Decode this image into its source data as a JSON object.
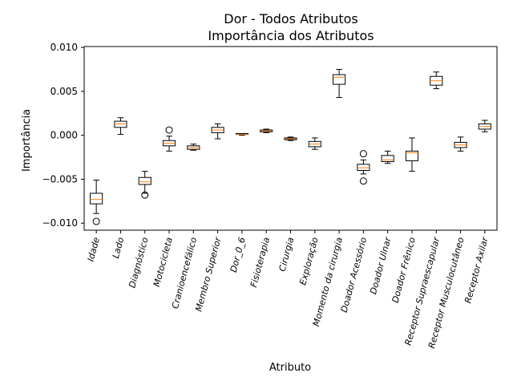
{
  "chart_data": {
    "type": "boxplot",
    "title_line1": "Dor - Todos Atributos",
    "title_line2": "Importância dos Atributos",
    "xlabel": "Atributo",
    "ylabel": "Importância",
    "ylim": [
      -0.0108,
      0.0101
    ],
    "yticks": [
      {
        "value": 0.01,
        "label": "0.010"
      },
      {
        "value": 0.005,
        "label": "0.005"
      },
      {
        "value": 0.0,
        "label": "0.000"
      },
      {
        "value": -0.005,
        "label": "−0.005"
      },
      {
        "value": -0.01,
        "label": "−0.010"
      }
    ],
    "median_color": "#ff7f0e",
    "categories": [
      "Idade",
      "Lado",
      "Diagnóstico",
      "Motocicleta",
      "Cranioencefálico",
      "Membro Superior",
      "Dor_0_6",
      "Fisioterapia",
      "Cirurgia",
      "Exploração",
      "Momento da cirurgia",
      "Doador Acessório",
      "Doador Ulnar",
      "Doador Frênico",
      "Receptor Supraescapular",
      "Receptor Musculocutâneo",
      "Receptor Axilar"
    ],
    "boxes": [
      {
        "name": "Idade",
        "whislo": -0.0089,
        "q1": -0.0078,
        "med": -0.0073,
        "q3": -0.0066,
        "whishi": -0.0051,
        "fliers": [
          -0.0098
        ]
      },
      {
        "name": "Lado",
        "whislo": 0.0001,
        "q1": 0.0009,
        "med": 0.0013,
        "q3": 0.0016,
        "whishi": 0.002,
        "fliers": []
      },
      {
        "name": "Diagnóstico",
        "whislo": -0.0066,
        "q1": -0.0056,
        "med": -0.0053,
        "q3": -0.0048,
        "whishi": -0.0041,
        "fliers": [
          -0.0068
        ]
      },
      {
        "name": "Motocicleta",
        "whislo": -0.0018,
        "q1": -0.0012,
        "med": -0.0009,
        "q3": -0.0006,
        "whishi": -0.0001,
        "fliers": [
          0.0006
        ]
      },
      {
        "name": "Cranioencefálico",
        "whislo": -0.0017,
        "q1": -0.0016,
        "med": -0.0014,
        "q3": -0.0012,
        "whishi": -0.001,
        "fliers": []
      },
      {
        "name": "Membro Superior",
        "whislo": -0.0004,
        "q1": 0.0003,
        "med": 0.0006,
        "q3": 0.0009,
        "whishi": 0.0013,
        "fliers": []
      },
      {
        "name": "Dor_0_6",
        "whislo": 0.0,
        "q1": 0.0001,
        "med": 0.0001,
        "q3": 0.0002,
        "whishi": 0.0002,
        "fliers": []
      },
      {
        "name": "Fisioterapia",
        "whislo": 0.0003,
        "q1": 0.0004,
        "med": 0.0005,
        "q3": 0.0006,
        "whishi": 0.0007,
        "fliers": []
      },
      {
        "name": "Cirurgia",
        "whislo": -0.0006,
        "q1": -0.0005,
        "med": -0.0004,
        "q3": -0.0003,
        "whishi": -0.0002,
        "fliers": []
      },
      {
        "name": "Exploração",
        "whislo": -0.0016,
        "q1": -0.0013,
        "med": -0.001,
        "q3": -0.0007,
        "whishi": -0.0003,
        "fliers": []
      },
      {
        "name": "Momento da cirurgia",
        "whislo": 0.0043,
        "q1": 0.0058,
        "med": 0.0066,
        "q3": 0.0069,
        "whishi": 0.0075,
        "fliers": []
      },
      {
        "name": "Doador Acessório",
        "whislo": -0.0044,
        "q1": -0.004,
        "med": -0.0037,
        "q3": -0.0033,
        "whishi": -0.0028,
        "fliers": [
          -0.0021,
          -0.0052
        ]
      },
      {
        "name": "Doador Ulnar",
        "whislo": -0.0032,
        "q1": -0.003,
        "med": -0.0028,
        "q3": -0.0023,
        "whishi": -0.0018,
        "fliers": []
      },
      {
        "name": "Doador Frênico",
        "whislo": -0.0041,
        "q1": -0.0029,
        "med": -0.002,
        "q3": -0.0018,
        "whishi": -0.0003,
        "fliers": []
      },
      {
        "name": "Receptor Supraescapular",
        "whislo": 0.0053,
        "q1": 0.0057,
        "med": 0.0062,
        "q3": 0.0067,
        "whishi": 0.0072,
        "fliers": []
      },
      {
        "name": "Receptor Musculocutâneo",
        "whislo": -0.0018,
        "q1": -0.0014,
        "med": -0.0011,
        "q3": -0.0008,
        "whishi": -0.0002,
        "fliers": []
      },
      {
        "name": "Receptor Axilar",
        "whislo": 0.0004,
        "q1": 0.0007,
        "med": 0.001,
        "q3": 0.0013,
        "whishi": 0.0017,
        "fliers": []
      }
    ]
  }
}
